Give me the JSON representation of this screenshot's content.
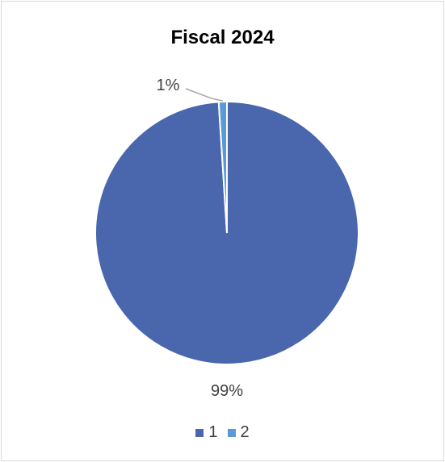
{
  "chart_data": {
    "type": "pie",
    "title": "Fiscal 2024",
    "categories": [
      "1",
      "2"
    ],
    "values": [
      99,
      1
    ],
    "data_labels": [
      "99%",
      "1%"
    ],
    "colors": [
      "#4a66ad",
      "#5b9bd5"
    ],
    "legend": "bottom"
  }
}
